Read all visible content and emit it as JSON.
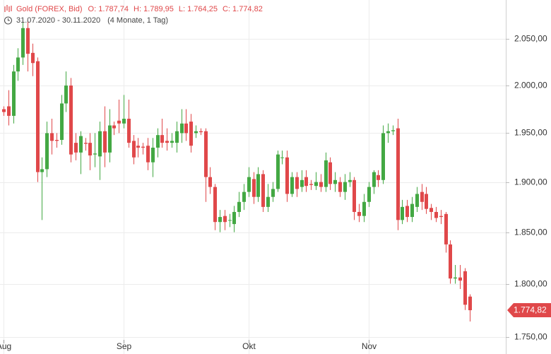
{
  "chart_data": {
    "type": "candlestick",
    "title": "Gold (FOREX, Bid)",
    "stats": [
      "O: 1.787,74",
      "H: 1.789,95",
      "L: 1.764,25",
      "C: 1.774,82"
    ],
    "range": "31.07.2020 - 30.11.2020",
    "period": "(4 Monate, 1 Tag)",
    "categories": [
      "Aug",
      null,
      null,
      null,
      null,
      null,
      null,
      null,
      null,
      null,
      null,
      null,
      null,
      null,
      null,
      null,
      null,
      null,
      null,
      null,
      null,
      null,
      null,
      null,
      null,
      "Sep",
      null,
      null,
      null,
      null,
      null,
      null,
      null,
      null,
      null,
      null,
      null,
      null,
      null,
      null,
      null,
      null,
      null,
      null,
      null,
      null,
      null,
      null,
      null,
      null,
      null,
      "Okt",
      null,
      null,
      null,
      null,
      null,
      null,
      null,
      null,
      null,
      null,
      null,
      null,
      null,
      null,
      null,
      null,
      null,
      null,
      null,
      null,
      null,
      null,
      null,
      null,
      "Nov",
      null,
      null,
      null,
      null,
      null,
      null,
      null,
      null,
      null,
      null,
      null,
      null,
      null,
      null,
      null,
      null,
      null,
      null,
      null,
      null,
      null
    ],
    "open": [
      1975,
      1978,
      1968,
      2015,
      2030,
      2062,
      2035,
      2026,
      1910,
      1913,
      1950,
      1943,
      1943,
      1981,
      2000,
      1940,
      1930,
      1940,
      1940,
      1928,
      1926,
      1952,
      1930,
      1958,
      1963,
      1960,
      1965,
      1942,
      1937,
      1936,
      1937,
      1920,
      1935,
      1948,
      1942,
      1940,
      1940,
      1950,
      1960,
      1962,
      1950,
      1952,
      1952,
      1905,
      1895,
      1860,
      1866,
      1862,
      1858,
      1870,
      1880,
      1890,
      1903,
      1885,
      1908,
      1875,
      1885,
      1893,
      1925,
      1925,
      1888,
      1905,
      1895,
      1905,
      1898,
      1896,
      1900,
      1895,
      1920,
      1898,
      1900,
      1890,
      1900,
      1902,
      1870,
      1866,
      1880,
      1895,
      1907,
      1902,
      1950,
      1952,
      1955,
      1862,
      1876,
      1865,
      1875,
      1890,
      1888,
      1874,
      1870,
      1866,
      1868,
      1838,
      1805,
      1806,
      1812,
      1787.74
    ],
    "high": [
      1978,
      1995,
      2022,
      2040,
      2068,
      2070,
      2045,
      2030,
      1925,
      1962,
      1965,
      1950,
      1990,
      2015,
      2008,
      1950,
      1952,
      1945,
      1950,
      1950,
      1962,
      1978,
      1975,
      1962,
      1985,
      1990,
      1985,
      1948,
      1945,
      1940,
      1945,
      1945,
      1955,
      1965,
      1955,
      1950,
      1962,
      1975,
      1975,
      1970,
      1958,
      1955,
      1955,
      1915,
      1898,
      1872,
      1872,
      1868,
      1876,
      1890,
      1898,
      1915,
      1910,
      1915,
      1912,
      1898,
      1900,
      1932,
      1932,
      1932,
      1910,
      1910,
      1912,
      1912,
      1902,
      1910,
      1908,
      1930,
      1925,
      1910,
      1905,
      1908,
      1910,
      1905,
      1878,
      1888,
      1900,
      1912,
      1912,
      1958,
      1960,
      1958,
      1965,
      1882,
      1882,
      1885,
      1895,
      1898,
      1895,
      1878,
      1875,
      1872,
      1870,
      1842,
      1818,
      1818,
      1815,
      1789.95
    ],
    "low": [
      1968,
      1958,
      1960,
      2005,
      2022,
      2015,
      2010,
      1900,
      1862,
      1905,
      1928,
      1935,
      1938,
      1972,
      1920,
      1922,
      1908,
      1932,
      1912,
      1915,
      1902,
      1915,
      1920,
      1948,
      1950,
      1955,
      1935,
      1918,
      1925,
      1928,
      1912,
      1905,
      1925,
      1935,
      1932,
      1935,
      1930,
      1940,
      1942,
      1930,
      1945,
      1948,
      1880,
      1888,
      1852,
      1850,
      1852,
      1855,
      1850,
      1865,
      1872,
      1885,
      1878,
      1880,
      1870,
      1870,
      1880,
      1890,
      1918,
      1880,
      1885,
      1885,
      1890,
      1890,
      1892,
      1892,
      1890,
      1890,
      1892,
      1890,
      1885,
      1882,
      1895,
      1862,
      1860,
      1860,
      1875,
      1888,
      1895,
      1898,
      1940,
      1948,
      1852,
      1858,
      1860,
      1860,
      1870,
      1872,
      1868,
      1862,
      1860,
      1858,
      1830,
      1800,
      1800,
      1795,
      1775,
      1764.25
    ],
    "close": [
      1972,
      1968,
      2015,
      2030,
      2062,
      2034,
      2024,
      1910,
      1913,
      1950,
      1942,
      1942,
      1981,
      2000,
      1928,
      1930,
      1947,
      1939,
      1927,
      1929,
      1952,
      1930,
      1958,
      1955,
      1960,
      1965,
      1940,
      1925,
      1935,
      1935,
      1920,
      1935,
      1948,
      1940,
      1940,
      1942,
      1952,
      1960,
      1950,
      1937,
      1952,
      1951,
      1905,
      1895,
      1860,
      1865,
      1860,
      1862,
      1870,
      1880,
      1890,
      1905,
      1885,
      1908,
      1875,
      1885,
      1893,
      1928,
      1925,
      1888,
      1905,
      1893,
      1902,
      1896,
      1897,
      1900,
      1895,
      1922,
      1898,
      1902,
      1890,
      1900,
      1902,
      1870,
      1866,
      1880,
      1895,
      1910,
      1902,
      1950,
      1952,
      1953,
      1862,
      1875,
      1865,
      1878,
      1888,
      1880,
      1873,
      1870,
      1864,
      1865,
      1838,
      1805,
      1806,
      1803,
      1780,
      1774.82
    ],
    "last_price": {
      "value": 1774.82,
      "label": "1.774,82"
    },
    "up_color": "#43a843",
    "down_color": "#e0484a",
    "log_scale": true,
    "grid": true,
    "ylim": [
      1734,
      2093
    ],
    "yticks": [
      {
        "value": 1750,
        "label": "1.750,00"
      },
      {
        "value": 1800,
        "label": "1.800,00"
      },
      {
        "value": 1850,
        "label": "1.850,00"
      },
      {
        "value": 1900,
        "label": "1.900,00"
      },
      {
        "value": 1950,
        "label": "1.950,00"
      },
      {
        "value": 2000,
        "label": "2.000,00"
      },
      {
        "value": 2050,
        "label": "2.050,00"
      }
    ]
  }
}
